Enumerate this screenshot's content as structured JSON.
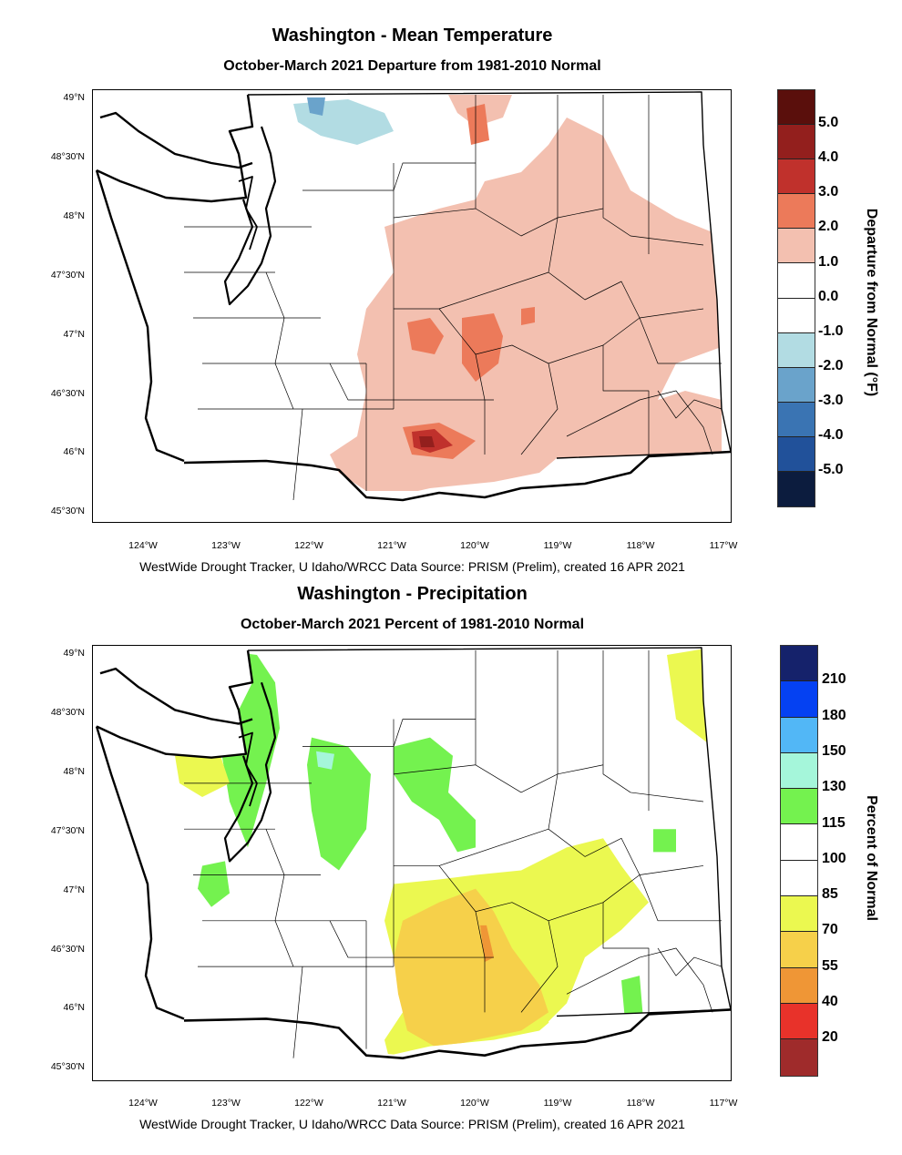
{
  "maps": [
    {
      "title": "Washington - Mean Temperature",
      "subtitle": "October-March 2021  Departure from 1981-2010 Normal",
      "credit": "WestWide Drought Tracker, U Idaho/WRCC Data Source: PRISM (Prelim), created 16 APR 2021",
      "lat_labels": [
        "49°N",
        "48°30'N",
        "48°N",
        "47°30'N",
        "47°N",
        "46°30'N",
        "46°N",
        "45°30'N"
      ],
      "lon_labels": [
        "124°W",
        "123°W",
        "122°W",
        "121°W",
        "120°W",
        "119°W",
        "118°W",
        "117°W"
      ],
      "colorbar": {
        "title": "Departure from Normal (°F)",
        "labels": [
          "5.0",
          "4.0",
          "3.0",
          "2.0",
          "1.0",
          "0.0",
          "-1.0",
          "-2.0",
          "-3.0",
          "-4.0",
          "-5.0"
        ],
        "colors": [
          "#5a0f0c",
          "#931f1d",
          "#c0312c",
          "#ec7a5a",
          "#f3c0b0",
          "#ffffff",
          "#ffffff",
          "#b2dce3",
          "#6aa3cb",
          "#3a74b3",
          "#21519a",
          "#0c1c3e"
        ]
      }
    },
    {
      "title": "Washington - Precipitation",
      "subtitle": "October-March 2021  Percent of 1981-2010 Normal",
      "credit": "WestWide Drought Tracker, U Idaho/WRCC Data Source: PRISM (Prelim), created 16 APR 2021",
      "lat_labels": [
        "49°N",
        "48°30'N",
        "48°N",
        "47°30'N",
        "47°N",
        "46°30'N",
        "46°N",
        "45°30'N"
      ],
      "lon_labels": [
        "124°W",
        "123°W",
        "122°W",
        "121°W",
        "120°W",
        "119°W",
        "118°W",
        "117°W"
      ],
      "colorbar": {
        "title": "Percent of Normal",
        "labels": [
          "210",
          "180",
          "150",
          "130",
          "115",
          "100",
          "85",
          "70",
          "55",
          "40",
          "20"
        ],
        "colors": [
          "#15226b",
          "#0541f2",
          "#52b7f6",
          "#a5f6da",
          "#74f24f",
          "#ffffff",
          "#ffffff",
          "#ebf850",
          "#f6d04a",
          "#ef9636",
          "#e8322a",
          "#9f2b2b"
        ]
      }
    }
  ]
}
